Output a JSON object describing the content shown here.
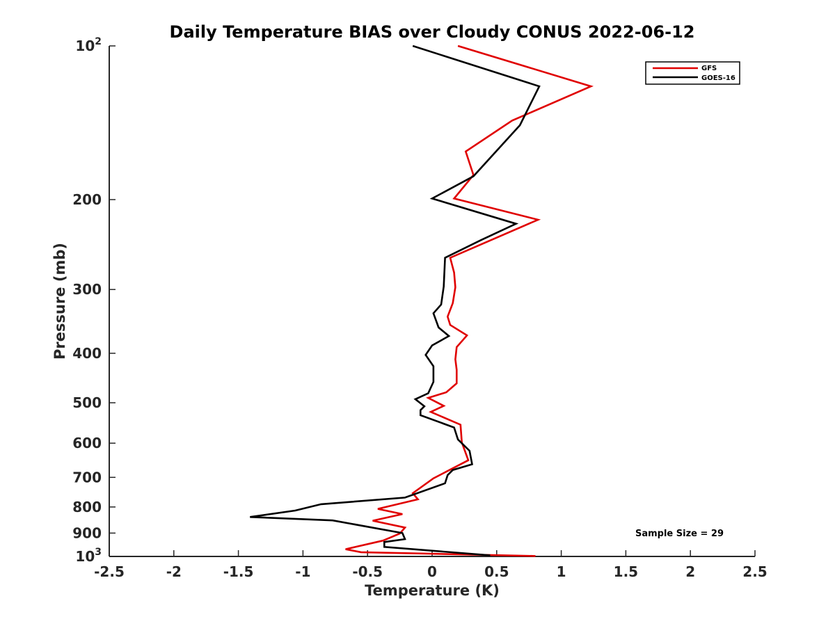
{
  "chart_data": {
    "type": "line",
    "title": "Daily Temperature BIAS over Cloudy CONUS 2022-06-12",
    "xlabel": "Temperature (K)",
    "ylabel": "Pressure (mb)",
    "xlim": [
      -2.5,
      2.5
    ],
    "ylim": [
      100,
      1000
    ],
    "y_scale": "log",
    "y_reversed": true,
    "grid": false,
    "legend_position": "top-right",
    "x_ticks": [
      -2.5,
      -2,
      -1.5,
      -1,
      -0.5,
      0,
      0.5,
      1,
      1.5,
      2,
      2.5
    ],
    "x_tick_labels": [
      "-2.5",
      "-2",
      "-1.5",
      "-1",
      "-0.5",
      "0",
      "0.5",
      "1",
      "1.5",
      "2",
      "2.5"
    ],
    "y_ticks": [
      100,
      200,
      300,
      400,
      500,
      600,
      700,
      800,
      900,
      1000
    ],
    "y_tick_labels": [
      {
        "base": "10",
        "exp": "2"
      },
      {
        "base": "200",
        "exp": ""
      },
      {
        "base": "300",
        "exp": ""
      },
      {
        "base": "400",
        "exp": ""
      },
      {
        "base": "500",
        "exp": ""
      },
      {
        "base": "600",
        "exp": ""
      },
      {
        "base": "700",
        "exp": ""
      },
      {
        "base": "800",
        "exp": ""
      },
      {
        "base": "900",
        "exp": ""
      },
      {
        "base": "1000",
        "exp": "3",
        "label_base": "10"
      }
    ],
    "annotation": "Sample Size = 29",
    "series": [
      {
        "name": "GFS",
        "color": "#e00000",
        "points": [
          [
            0.2,
            100
          ],
          [
            1.23,
            120
          ],
          [
            0.62,
            140
          ],
          [
            0.26,
            161
          ],
          [
            0.32,
            179
          ],
          [
            0.17,
            199
          ],
          [
            0.82,
            219
          ],
          [
            0.14,
            260
          ],
          [
            0.17,
            278
          ],
          [
            0.18,
            297
          ],
          [
            0.16,
            319
          ],
          [
            0.12,
            339
          ],
          [
            0.14,
            352
          ],
          [
            0.27,
            369
          ],
          [
            0.19,
            389
          ],
          [
            0.18,
            411
          ],
          [
            0.19,
            431
          ],
          [
            0.19,
            458
          ],
          [
            0.11,
            477
          ],
          [
            -0.03,
            489
          ],
          [
            0.09,
            507
          ],
          [
            -0.01,
            521
          ],
          [
            0.22,
            552
          ],
          [
            0.23,
            598
          ],
          [
            0.28,
            648
          ],
          [
            0.14,
            676
          ],
          [
            0.01,
            703
          ],
          [
            -0.15,
            752
          ],
          [
            -0.11,
            773
          ],
          [
            -0.42,
            807
          ],
          [
            -0.23,
            826
          ],
          [
            -0.46,
            851
          ],
          [
            -0.21,
            878
          ],
          [
            -0.25,
            902
          ],
          [
            -0.38,
            931
          ],
          [
            -0.67,
            968
          ],
          [
            -0.55,
            981
          ],
          [
            0.8,
            998
          ]
        ]
      },
      {
        "name": "GOES-16",
        "color": "#000000",
        "points": [
          [
            -0.15,
            100
          ],
          [
            0.83,
            120
          ],
          [
            0.68,
            143
          ],
          [
            0.32,
            180
          ],
          [
            0.0,
            199
          ],
          [
            0.65,
            223
          ],
          [
            0.38,
            240
          ],
          [
            0.1,
            260
          ],
          [
            0.09,
            296
          ],
          [
            0.07,
            321
          ],
          [
            0.01,
            334
          ],
          [
            0.05,
            356
          ],
          [
            0.13,
            370
          ],
          [
            0.0,
            386
          ],
          [
            -0.05,
            403
          ],
          [
            0.01,
            424
          ],
          [
            0.01,
            455
          ],
          [
            -0.03,
            479
          ],
          [
            -0.13,
            492
          ],
          [
            -0.06,
            508
          ],
          [
            -0.09,
            517
          ],
          [
            -0.09,
            529
          ],
          [
            0.17,
            559
          ],
          [
            0.2,
            590
          ],
          [
            0.29,
            621
          ],
          [
            0.31,
            660
          ],
          [
            0.16,
            677
          ],
          [
            0.12,
            693
          ],
          [
            0.1,
            719
          ],
          [
            -0.21,
            767
          ],
          [
            -0.86,
            790
          ],
          [
            -1.06,
            813
          ],
          [
            -1.41,
            837
          ],
          [
            -0.77,
            850
          ],
          [
            -0.23,
            900
          ],
          [
            -0.21,
            925
          ],
          [
            -0.37,
            937
          ],
          [
            -0.37,
            958
          ],
          [
            0.45,
            995
          ]
        ]
      }
    ]
  }
}
